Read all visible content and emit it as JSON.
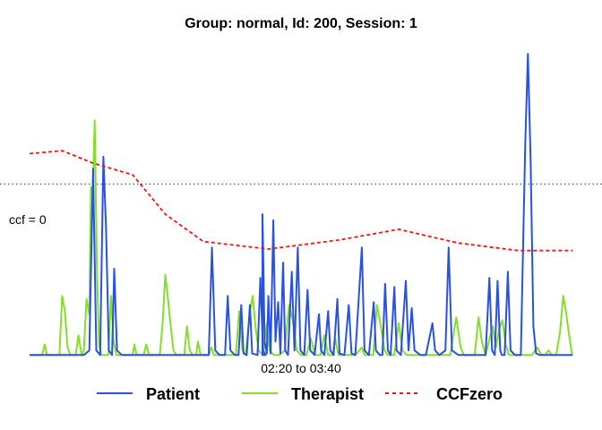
{
  "chart_data": {
    "type": "line",
    "title": "Group: normal, Id: 200, Session: 1",
    "xlabel": "02:20 to 03:40",
    "ylabel": "",
    "x_range": [
      0,
      100
    ],
    "ylim": [
      0,
      100
    ],
    "reference_line": {
      "label": "ccf = 0",
      "y": 57
    },
    "grid": false,
    "legend_position": "bottom",
    "colors": {
      "Patient": "#2952e0",
      "Therapist": "#84de2a",
      "CCFzero": "#ff1111"
    },
    "series": [
      {
        "name": "Patient",
        "style": "solid",
        "points": [
          [
            0,
            0.5
          ],
          [
            10,
            0.5
          ],
          [
            11,
            2
          ],
          [
            11.7,
            62
          ],
          [
            12.3,
            2
          ],
          [
            13,
            0.5
          ],
          [
            13.6,
            66
          ],
          [
            14.1,
            42
          ],
          [
            14.6,
            2
          ],
          [
            15.2,
            0.5
          ],
          [
            15.6,
            29
          ],
          [
            16.1,
            2
          ],
          [
            17,
            0.5
          ],
          [
            33,
            0.5
          ],
          [
            33.6,
            36
          ],
          [
            34.2,
            2
          ],
          [
            35,
            0.5
          ],
          [
            36,
            0.5
          ],
          [
            36.5,
            20
          ],
          [
            37,
            2
          ],
          [
            37.8,
            0.5
          ],
          [
            38.5,
            0.5
          ],
          [
            39,
            17
          ],
          [
            39.4,
            1
          ],
          [
            40,
            0.5
          ],
          [
            40.6,
            17
          ],
          [
            41,
            1
          ],
          [
            42,
            0.5
          ],
          [
            42.5,
            26
          ],
          [
            43,
            2
          ],
          [
            43.5,
            0.5
          ],
          [
            42.9,
            0.5
          ],
          [
            42.9,
            47
          ],
          [
            43.3,
            5
          ],
          [
            43.7,
            1
          ],
          [
            44,
            20
          ],
          [
            44.4,
            1
          ],
          [
            44.9,
            45
          ],
          [
            45.3,
            5
          ],
          [
            45.8,
            18
          ],
          [
            46.2,
            1
          ],
          [
            46.7,
            31
          ],
          [
            47.1,
            2
          ],
          [
            47.6,
            0.5
          ],
          [
            48.3,
            28
          ],
          [
            48.8,
            2
          ],
          [
            49.4,
            36
          ],
          [
            49.9,
            2
          ],
          [
            50.6,
            0.5
          ],
          [
            51.2,
            22
          ],
          [
            51.7,
            2
          ],
          [
            52.5,
            0.5
          ],
          [
            53.3,
            14
          ],
          [
            53.7,
            2
          ],
          [
            54.3,
            0.5
          ],
          [
            55,
            15
          ],
          [
            55.4,
            2
          ],
          [
            56,
            0.5
          ],
          [
            56.7,
            19
          ],
          [
            57.1,
            1
          ],
          [
            58,
            0.5
          ],
          [
            58.8,
            17
          ],
          [
            59.3,
            1
          ],
          [
            60,
            0.5
          ],
          [
            61.2,
            36
          ],
          [
            61.7,
            2
          ],
          [
            62.5,
            0.5
          ],
          [
            63.4,
            18
          ],
          [
            63.8,
            2
          ],
          [
            64.5,
            0.5
          ],
          [
            65,
            0.5
          ],
          [
            65.5,
            24
          ],
          [
            66,
            2
          ],
          [
            66.5,
            0.5
          ],
          [
            67.2,
            23
          ],
          [
            67.6,
            2
          ],
          [
            68.4,
            0.5
          ],
          [
            69.3,
            25
          ],
          [
            69.8,
            2
          ],
          [
            70.4,
            16
          ],
          [
            70.9,
            2
          ],
          [
            72,
            0.5
          ],
          [
            73,
            0.5
          ],
          [
            74.2,
            11
          ],
          [
            74.7,
            2
          ],
          [
            75.5,
            0.5
          ],
          [
            76.6,
            2
          ],
          [
            77.2,
            36
          ],
          [
            77.8,
            2
          ],
          [
            79,
            0.5
          ],
          [
            84,
            0.5
          ],
          [
            84.7,
            26
          ],
          [
            85.2,
            2
          ],
          [
            85.7,
            0.5
          ],
          [
            86.2,
            25
          ],
          [
            86.7,
            2
          ],
          [
            87,
            0.5
          ],
          [
            87.5,
            0.5
          ],
          [
            88.1,
            28
          ],
          [
            88.6,
            2
          ],
          [
            89.4,
            0.5
          ],
          [
            90.5,
            0.5
          ],
          [
            91.3,
            70
          ],
          [
            91.8,
            100
          ],
          [
            92.3,
            65
          ],
          [
            92.8,
            10
          ],
          [
            93.3,
            1
          ],
          [
            94,
            0.5
          ],
          [
            100,
            0.5
          ]
        ]
      },
      {
        "name": "Therapist",
        "style": "solid",
        "points": [
          [
            0,
            0.5
          ],
          [
            2.3,
            0.5
          ],
          [
            2.8,
            4
          ],
          [
            3.2,
            0.5
          ],
          [
            5.5,
            0.5
          ],
          [
            6,
            20
          ],
          [
            6.5,
            15
          ],
          [
            7,
            3
          ],
          [
            7.5,
            0.5
          ],
          [
            8.5,
            0.5
          ],
          [
            9,
            7
          ],
          [
            9.6,
            0.5
          ],
          [
            10,
            2
          ],
          [
            10.5,
            19
          ],
          [
            11,
            14
          ],
          [
            11.3,
            56
          ],
          [
            11.6,
            50
          ],
          [
            12,
            78
          ],
          [
            12.4,
            30
          ],
          [
            12.8,
            4
          ],
          [
            13.2,
            0.5
          ],
          [
            14.5,
            0.5
          ],
          [
            15,
            20
          ],
          [
            15.5,
            5
          ],
          [
            16,
            0.5
          ],
          [
            19,
            0.5
          ],
          [
            19.3,
            4
          ],
          [
            19.7,
            0.5
          ],
          [
            21,
            0.5
          ],
          [
            21.5,
            4
          ],
          [
            22,
            0.5
          ],
          [
            24,
            0.5
          ],
          [
            24.5,
            11
          ],
          [
            25,
            27
          ],
          [
            25.5,
            19
          ],
          [
            26,
            10
          ],
          [
            26.5,
            2
          ],
          [
            27,
            0.5
          ],
          [
            28.5,
            0.5
          ],
          [
            29,
            10
          ],
          [
            29.5,
            2
          ],
          [
            30,
            0.5
          ],
          [
            30.7,
            0.5
          ],
          [
            31,
            5
          ],
          [
            31.5,
            0.5
          ],
          [
            33,
            0.5
          ],
          [
            33.5,
            3
          ],
          [
            34,
            0.5
          ],
          [
            38,
            0.5
          ],
          [
            38.6,
            15
          ],
          [
            39.2,
            2
          ],
          [
            39.8,
            0.5
          ],
          [
            40.6,
            15
          ],
          [
            41.1,
            20
          ],
          [
            41.6,
            10
          ],
          [
            42.2,
            2
          ],
          [
            43,
            0.5
          ],
          [
            43.7,
            11
          ],
          [
            44.2,
            2
          ],
          [
            45,
            0.5
          ],
          [
            46,
            0.5
          ],
          [
            47,
            2
          ],
          [
            47.8,
            17
          ],
          [
            48.5,
            12
          ],
          [
            49.2,
            2
          ],
          [
            50,
            0.5
          ],
          [
            51,
            0.5
          ],
          [
            51.8,
            6
          ],
          [
            52.6,
            0.5
          ],
          [
            53.6,
            0.5
          ],
          [
            54.3,
            7
          ],
          [
            55,
            0.5
          ],
          [
            55.8,
            0.5
          ],
          [
            56.3,
            6
          ],
          [
            56.9,
            0.5
          ],
          [
            60,
            0.5
          ],
          [
            61.2,
            3
          ],
          [
            61.7,
            0.5
          ],
          [
            63.3,
            0.5
          ],
          [
            64,
            17
          ],
          [
            64.7,
            10
          ],
          [
            65.4,
            2
          ],
          [
            66,
            0.5
          ],
          [
            67.2,
            0.5
          ],
          [
            68,
            11
          ],
          [
            68.7,
            2
          ],
          [
            69.5,
            0.5
          ],
          [
            77.5,
            0.5
          ],
          [
            78.6,
            13
          ],
          [
            79.4,
            3
          ],
          [
            80,
            0.5
          ],
          [
            82,
            0.5
          ],
          [
            82.7,
            13
          ],
          [
            83.3,
            5
          ],
          [
            84,
            0.5
          ],
          [
            85.3,
            10
          ],
          [
            85.9,
            3
          ],
          [
            86.5,
            9
          ],
          [
            87.1,
            12
          ],
          [
            87.7,
            4
          ],
          [
            88.3,
            0.5
          ],
          [
            92.5,
            0.5
          ],
          [
            93.5,
            3
          ],
          [
            94.3,
            0.5
          ],
          [
            95,
            0.5
          ],
          [
            95.6,
            2
          ],
          [
            96.2,
            0.5
          ],
          [
            97,
            0.5
          ],
          [
            97.7,
            8
          ],
          [
            98.3,
            20
          ],
          [
            98.8,
            15
          ],
          [
            99.3,
            8
          ],
          [
            99.8,
            2
          ],
          [
            100,
            0.5
          ]
        ]
      },
      {
        "name": "CCFzero",
        "style": "dashed",
        "points": [
          [
            0,
            67
          ],
          [
            6,
            68
          ],
          [
            11.5,
            64
          ],
          [
            19,
            60
          ],
          [
            25,
            47
          ],
          [
            32,
            38
          ],
          [
            44,
            35.5
          ],
          [
            57,
            38.5
          ],
          [
            68,
            42
          ],
          [
            79,
            37.5
          ],
          [
            90,
            35
          ],
          [
            100,
            35
          ]
        ]
      }
    ]
  }
}
